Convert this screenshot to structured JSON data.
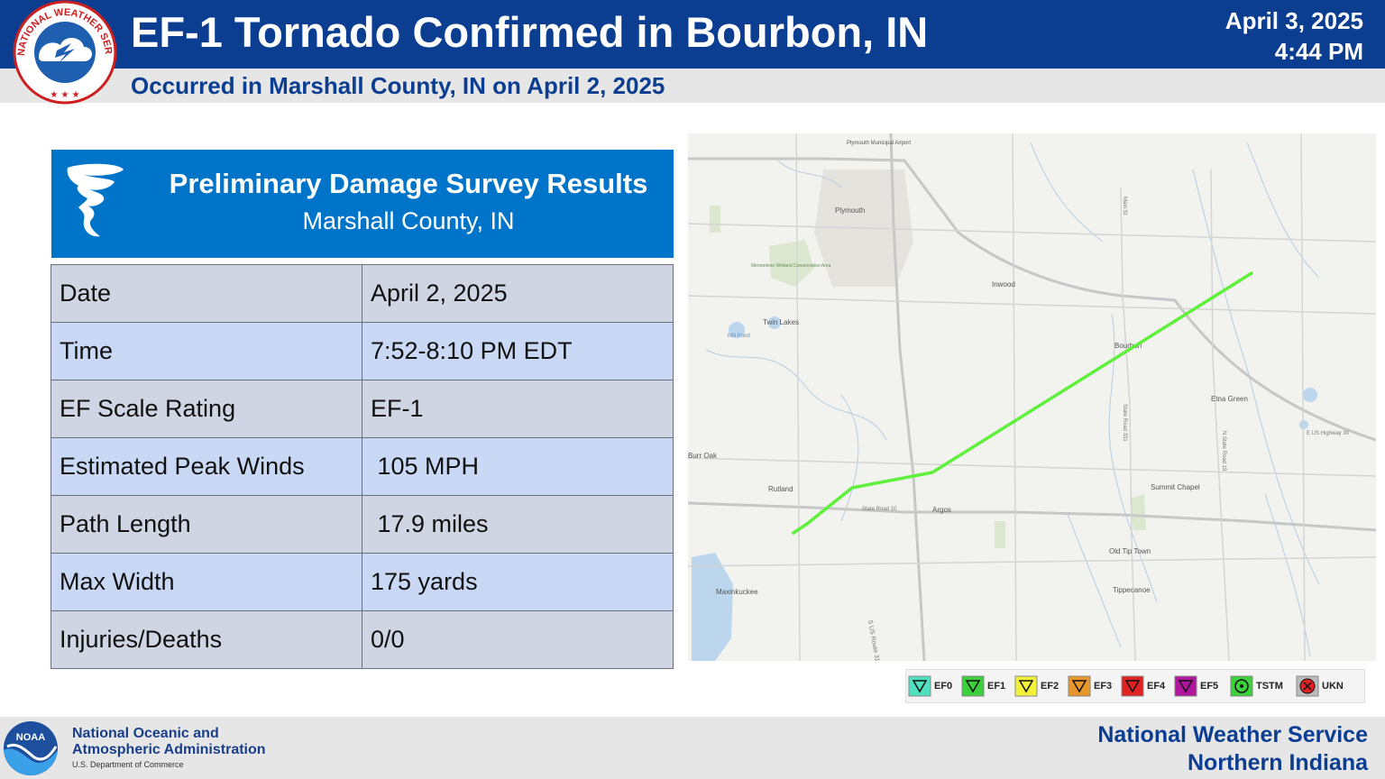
{
  "header": {
    "title": "EF-1 Tornado Confirmed in Bourbon, IN",
    "subtitle": "Occurred in Marshall County, IN on April 2, 2025",
    "date": "April 3, 2025",
    "time": "4:44 PM",
    "logo_text": "NATIONAL WEATHER SERVICE"
  },
  "survey": {
    "title": "Preliminary Damage Survey Results",
    "location": "Marshall County, IN",
    "rows": [
      {
        "label": "Date",
        "value": "April 2, 2025"
      },
      {
        "label": "Time",
        "value": "7:52-8:10 PM EDT"
      },
      {
        "label": "EF Scale Rating",
        "value": "EF-1"
      },
      {
        "label": "Estimated Peak Winds",
        "value": " 105 MPH"
      },
      {
        "label": "Path Length",
        "value": " 17.9 miles"
      },
      {
        "label": "Max Width",
        "value": "175 yards"
      },
      {
        "label": "Injuries/Deaths",
        "value": "0/0"
      }
    ]
  },
  "map": {
    "places": [
      "Plymouth",
      "Plymouth Municipal Airport",
      "Inwood",
      "Bourbon",
      "Etna Green",
      "Twin Lakes",
      "Mill Pond",
      "Menominee Wetland Conservation Area",
      "Rutland",
      "Argos",
      "Summit Chapel",
      "Old Tip Town",
      "Tippecanoe",
      "Maxinkuckee",
      "Burr Oak"
    ],
    "roads": [
      "S US Route 31",
      "State Road 10",
      "State Road 331",
      "N State Road 19",
      "E US Highway 30",
      "Main St"
    ],
    "track_color": "#5ef03a"
  },
  "legend": {
    "items": [
      {
        "label": "EF0",
        "color": "#4fe0c0"
      },
      {
        "label": "EF1",
        "color": "#3cd13c"
      },
      {
        "label": "EF2",
        "color": "#f2f23a"
      },
      {
        "label": "EF3",
        "color": "#e8962a"
      },
      {
        "label": "EF4",
        "color": "#e02222"
      },
      {
        "label": "EF5",
        "color": "#b0179e"
      },
      {
        "label": "TSTM",
        "color": "#3cd13c"
      },
      {
        "label": "UKN",
        "color": "#e02222"
      }
    ]
  },
  "footer": {
    "noaa_line1": "National Oceanic and",
    "noaa_line2": "Atmospheric Administration",
    "noaa_line3": "U.S. Department of Commerce",
    "noaa_logo_text": "NOAA",
    "nws_line1": "National Weather Service",
    "nws_line2": "Northern Indiana"
  }
}
